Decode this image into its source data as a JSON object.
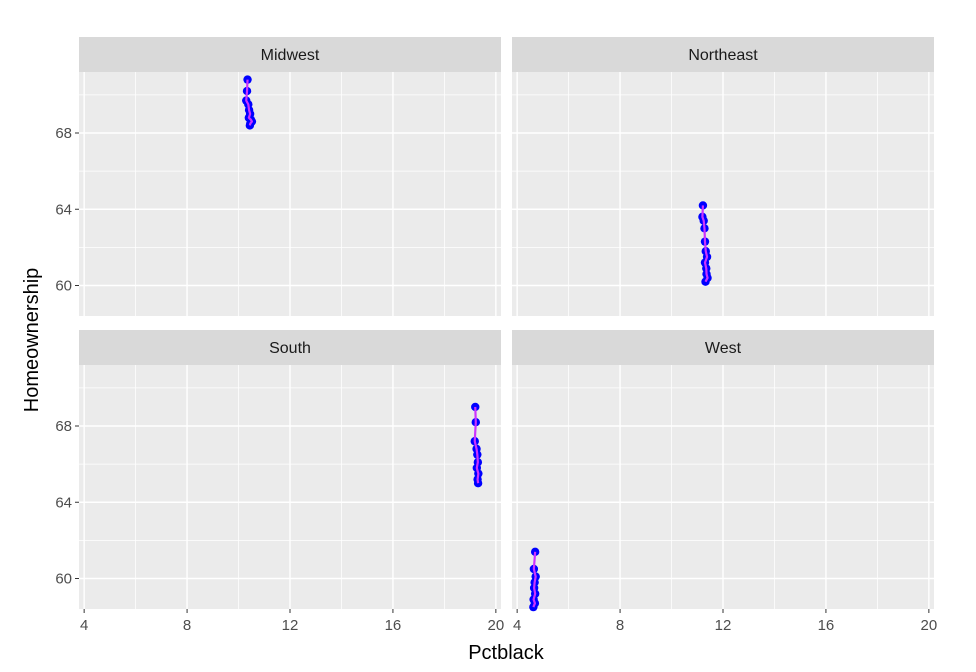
{
  "chart_data": {
    "type": "scatter",
    "layout": "facet_wrap 2x2",
    "xlabel": "Pctblack",
    "ylabel": "Homeownership",
    "xlim": [
      3.8,
      20.2
    ],
    "ylim": [
      58.4,
      71.2
    ],
    "x_ticks": [
      4,
      8,
      12,
      16,
      20
    ],
    "y_ticks": [
      60,
      64,
      68
    ],
    "grid": true,
    "point_color": "#0000ff",
    "line_color": "#cc33ff",
    "panel_background": "#ebebeb",
    "strip_background": "#d9d9d9",
    "panels": [
      {
        "name": "Midwest",
        "points": [
          {
            "x": 10.35,
            "y": 70.8
          },
          {
            "x": 10.33,
            "y": 70.2
          },
          {
            "x": 10.3,
            "y": 69.7
          },
          {
            "x": 10.38,
            "y": 69.5
          },
          {
            "x": 10.41,
            "y": 69.2
          },
          {
            "x": 10.45,
            "y": 69.0
          },
          {
            "x": 10.4,
            "y": 68.8
          },
          {
            "x": 10.48,
            "y": 68.7
          },
          {
            "x": 10.52,
            "y": 68.6
          },
          {
            "x": 10.46,
            "y": 68.5
          },
          {
            "x": 10.44,
            "y": 68.4
          }
        ]
      },
      {
        "name": "Northeast",
        "points": [
          {
            "x": 11.22,
            "y": 64.2
          },
          {
            "x": 11.2,
            "y": 63.6
          },
          {
            "x": 11.25,
            "y": 63.4
          },
          {
            "x": 11.28,
            "y": 63.0
          },
          {
            "x": 11.3,
            "y": 62.3
          },
          {
            "x": 11.33,
            "y": 61.8
          },
          {
            "x": 11.38,
            "y": 61.5
          },
          {
            "x": 11.3,
            "y": 61.2
          },
          {
            "x": 11.35,
            "y": 60.9
          },
          {
            "x": 11.36,
            "y": 60.6
          },
          {
            "x": 11.4,
            "y": 60.4
          },
          {
            "x": 11.32,
            "y": 60.2
          }
        ]
      },
      {
        "name": "South",
        "points": [
          {
            "x": 19.2,
            "y": 69.0
          },
          {
            "x": 19.22,
            "y": 68.2
          },
          {
            "x": 19.18,
            "y": 67.2
          },
          {
            "x": 19.25,
            "y": 66.8
          },
          {
            "x": 19.28,
            "y": 66.5
          },
          {
            "x": 19.3,
            "y": 66.1
          },
          {
            "x": 19.26,
            "y": 65.8
          },
          {
            "x": 19.32,
            "y": 65.5
          },
          {
            "x": 19.29,
            "y": 65.2
          },
          {
            "x": 19.31,
            "y": 65.0
          }
        ]
      },
      {
        "name": "West",
        "points": [
          {
            "x": 4.7,
            "y": 61.4
          },
          {
            "x": 4.65,
            "y": 60.5
          },
          {
            "x": 4.72,
            "y": 60.1
          },
          {
            "x": 4.68,
            "y": 59.8
          },
          {
            "x": 4.66,
            "y": 59.5
          },
          {
            "x": 4.7,
            "y": 59.2
          },
          {
            "x": 4.64,
            "y": 58.9
          },
          {
            "x": 4.69,
            "y": 58.7
          },
          {
            "x": 4.63,
            "y": 58.5
          }
        ]
      }
    ]
  }
}
